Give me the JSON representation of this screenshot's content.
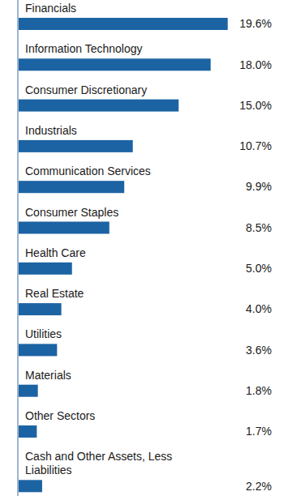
{
  "chart_data": {
    "type": "bar",
    "orientation": "horizontal",
    "categories": [
      "Financials",
      "Information Technology",
      "Consumer Discretionary",
      "Industrials",
      "Communication Services",
      "Consumer Staples",
      "Health Care",
      "Real Estate",
      "Utilities",
      "Materials",
      "Other Sectors",
      "Cash and Other Assets, Less Liabilities"
    ],
    "values": [
      19.6,
      18.0,
      15.0,
      10.7,
      9.9,
      8.5,
      5.0,
      4.0,
      3.6,
      1.8,
      1.7,
      2.2
    ],
    "value_labels": [
      "19.6%",
      "18.0%",
      "15.0%",
      "10.7%",
      "9.9%",
      "8.5%",
      "5.0%",
      "4.0%",
      "3.6%",
      "1.8%",
      "1.7%",
      "2.2%"
    ],
    "color": "#1c63a3",
    "xlim": [
      0,
      20
    ],
    "data_labels": true,
    "tick_labels": false,
    "grid": false
  }
}
